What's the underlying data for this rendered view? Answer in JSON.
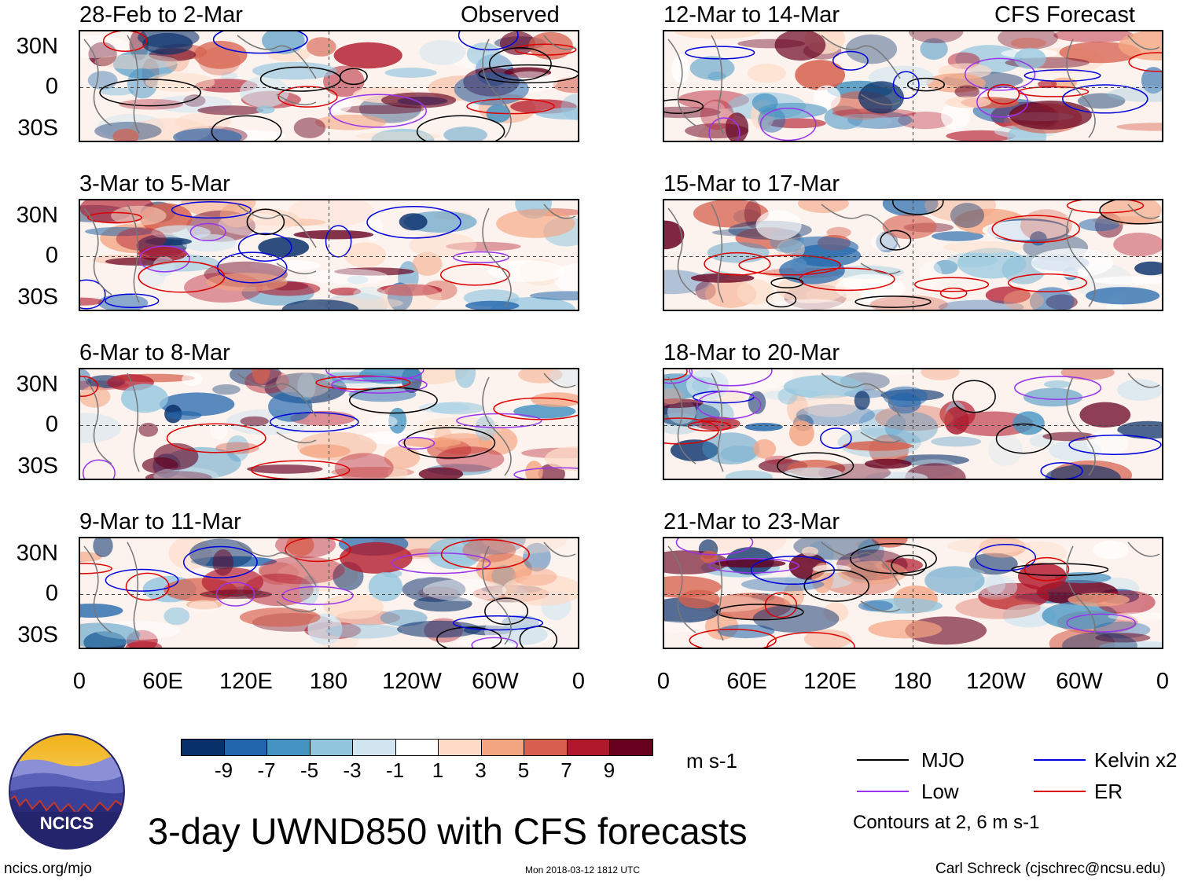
{
  "panels_left": [
    {
      "title": "28-Feb to 2-Mar",
      "tag": "Observed"
    },
    {
      "title": "3-Mar to 5-Mar",
      "tag": ""
    },
    {
      "title": "6-Mar to 8-Mar",
      "tag": ""
    },
    {
      "title": "9-Mar to 11-Mar",
      "tag": ""
    }
  ],
  "panels_right": [
    {
      "title": "12-Mar to 14-Mar",
      "tag": "CFS Forecast"
    },
    {
      "title": "15-Mar to 17-Mar",
      "tag": ""
    },
    {
      "title": "18-Mar to 20-Mar",
      "tag": ""
    },
    {
      "title": "21-Mar to 23-Mar",
      "tag": ""
    }
  ],
  "lat_labels": [
    "30N",
    "0",
    "30S"
  ],
  "lon_labels": [
    "0",
    "60E",
    "120E",
    "180",
    "120W",
    "60W",
    "0"
  ],
  "colorbar": {
    "colors": [
      "#08306b",
      "#2166ac",
      "#4393c3",
      "#92c5de",
      "#d1e5f0",
      "#ffffff",
      "#fddbc7",
      "#f4a582",
      "#d6604d",
      "#b2182b",
      "#67001f"
    ],
    "ticks": [
      "-9",
      "-7",
      "-5",
      "-3",
      "-1",
      "1",
      "3",
      "5",
      "7",
      "9"
    ],
    "units": "m s-1"
  },
  "legend": {
    "items": [
      {
        "label": "MJO",
        "color": "#000000"
      },
      {
        "label": "Kelvin x2",
        "color": "#0000dd"
      },
      {
        "label": "Low",
        "color": "#9933ee"
      },
      {
        "label": "ER",
        "color": "#dd0000"
      }
    ],
    "note": "Contours at 2, 6 m s-1"
  },
  "title": "3-day UWND850 with CFS forecasts",
  "logo_text": "NCICS",
  "footer": {
    "url": "ncics.org/mjo",
    "timestamp": "Mon 2018-03-12 1812 UTC",
    "author": "Carl Schreck (cjschrec@ncsu.edu)"
  }
}
